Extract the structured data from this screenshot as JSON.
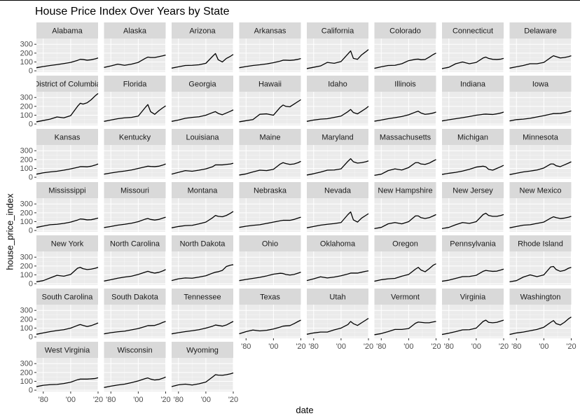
{
  "chart_data": {
    "type": "line",
    "title": "House Price Index Over Years by State",
    "xlabel": "date",
    "ylabel": "house_price_index",
    "xlim": [
      1975,
      2020
    ],
    "ylim": [
      -15,
      365
    ],
    "xticks": [
      {
        "value": 1980,
        "label": "'80"
      },
      {
        "value": 2000,
        "label": "'00"
      },
      {
        "value": 2020,
        "label": "'20"
      }
    ],
    "yticks": [
      0,
      100,
      200,
      300
    ],
    "x": [
      1975,
      1980,
      1985,
      1990,
      1995,
      2000,
      2005,
      2007,
      2009,
      2012,
      2015,
      2018,
      2020
    ],
    "series": [
      {
        "name": "Alabama",
        "values": [
          35,
          48,
          60,
          70,
          82,
          95,
          118,
          130,
          128,
          120,
          125,
          135,
          145
        ]
      },
      {
        "name": "Alaska",
        "values": [
          38,
          55,
          75,
          62,
          75,
          95,
          140,
          155,
          150,
          150,
          160,
          170,
          178
        ]
      },
      {
        "name": "Arizona",
        "values": [
          30,
          45,
          60,
          62,
          68,
          85,
          165,
          195,
          125,
          100,
          140,
          165,
          185
        ]
      },
      {
        "name": "Arkansas",
        "values": [
          35,
          48,
          60,
          68,
          78,
          92,
          110,
          120,
          120,
          118,
          122,
          130,
          138
        ]
      },
      {
        "name": "California",
        "values": [
          25,
          40,
          55,
          95,
          85,
          105,
          190,
          225,
          140,
          130,
          180,
          215,
          240
        ]
      },
      {
        "name": "Colorado",
        "values": [
          28,
          45,
          60,
          62,
          80,
          115,
          130,
          132,
          125,
          128,
          155,
          185,
          200
        ]
      },
      {
        "name": "Connecticut",
        "values": [
          25,
          40,
          80,
          100,
          80,
          95,
          145,
          155,
          140,
          130,
          128,
          132,
          140
        ]
      },
      {
        "name": "Delaware",
        "values": [
          30,
          45,
          60,
          80,
          80,
          95,
          150,
          170,
          160,
          145,
          150,
          160,
          170
        ]
      },
      {
        "name": "District of Columbia",
        "values": [
          25,
          40,
          55,
          80,
          70,
          95,
          200,
          235,
          225,
          240,
          275,
          320,
          345
        ]
      },
      {
        "name": "Florida",
        "values": [
          30,
          45,
          60,
          70,
          75,
          90,
          185,
          220,
          140,
          110,
          150,
          185,
          205
        ]
      },
      {
        "name": "Georgia",
        "values": [
          30,
          45,
          65,
          75,
          82,
          100,
          130,
          140,
          120,
          105,
          125,
          145,
          160
        ]
      },
      {
        "name": "Hawaii",
        "values": [
          25,
          38,
          50,
          110,
          115,
          100,
          190,
          215,
          200,
          195,
          225,
          255,
          275
        ]
      },
      {
        "name": "Idaho",
        "values": [
          30,
          45,
          55,
          60,
          75,
          90,
          140,
          165,
          130,
          115,
          145,
          175,
          200
        ]
      },
      {
        "name": "Illinois",
        "values": [
          32,
          45,
          60,
          72,
          85,
          105,
          135,
          145,
          125,
          110,
          115,
          125,
          135
        ]
      },
      {
        "name": "Indiana",
        "values": [
          35,
          48,
          60,
          72,
          85,
          100,
          110,
          112,
          110,
          108,
          115,
          125,
          135
        ]
      },
      {
        "name": "Iowa",
        "values": [
          35,
          50,
          55,
          65,
          80,
          95,
          112,
          118,
          118,
          120,
          128,
          138,
          148
        ]
      },
      {
        "name": "Kansas",
        "values": [
          35,
          50,
          60,
          68,
          80,
          95,
          112,
          120,
          120,
          118,
          125,
          138,
          150
        ]
      },
      {
        "name": "Kentucky",
        "values": [
          35,
          48,
          60,
          70,
          82,
          100,
          118,
          125,
          122,
          120,
          125,
          138,
          150
        ]
      },
      {
        "name": "Louisiana",
        "values": [
          35,
          55,
          75,
          68,
          80,
          95,
          120,
          140,
          140,
          140,
          145,
          150,
          158
        ]
      },
      {
        "name": "Maine",
        "values": [
          25,
          38,
          60,
          80,
          75,
          90,
          150,
          165,
          155,
          145,
          150,
          165,
          180
        ]
      },
      {
        "name": "Maryland",
        "values": [
          25,
          40,
          58,
          80,
          82,
          95,
          180,
          210,
          175,
          160,
          165,
          175,
          185
        ]
      },
      {
        "name": "Massachusetts",
        "values": [
          22,
          35,
          75,
          95,
          82,
          110,
          165,
          165,
          150,
          145,
          160,
          185,
          200
        ]
      },
      {
        "name": "Michigan",
        "values": [
          32,
          45,
          55,
          70,
          90,
          115,
          125,
          118,
          90,
          80,
          100,
          120,
          135
        ]
      },
      {
        "name": "Minnesota",
        "values": [
          30,
          45,
          60,
          70,
          82,
          105,
          150,
          150,
          130,
          120,
          140,
          160,
          175
        ]
      },
      {
        "name": "Mississippi",
        "values": [
          35,
          50,
          65,
          70,
          80,
          95,
          118,
          130,
          128,
          120,
          122,
          132,
          140
        ]
      },
      {
        "name": "Missouri",
        "values": [
          33,
          45,
          60,
          70,
          82,
          100,
          128,
          135,
          125,
          118,
          125,
          140,
          150
        ]
      },
      {
        "name": "Montana",
        "values": [
          30,
          45,
          55,
          58,
          75,
          95,
          145,
          170,
          160,
          155,
          170,
          195,
          215
        ]
      },
      {
        "name": "Nebraska",
        "values": [
          35,
          48,
          58,
          65,
          80,
          95,
          110,
          115,
          115,
          115,
          125,
          140,
          150
        ]
      },
      {
        "name": "Nevada",
        "values": [
          30,
          45,
          60,
          70,
          78,
          90,
          180,
          210,
          120,
          95,
          140,
          170,
          190
        ]
      },
      {
        "name": "New Hampshire",
        "values": [
          22,
          35,
          75,
          90,
          75,
          100,
          165,
          165,
          145,
          135,
          145,
          165,
          180
        ]
      },
      {
        "name": "New Jersey",
        "values": [
          22,
          35,
          65,
          90,
          80,
          100,
          180,
          195,
          170,
          160,
          160,
          170,
          180
        ]
      },
      {
        "name": "New Mexico",
        "values": [
          30,
          45,
          60,
          65,
          80,
          95,
          140,
          155,
          145,
          135,
          140,
          150,
          160
        ]
      },
      {
        "name": "New York",
        "values": [
          22,
          35,
          65,
          95,
          85,
          105,
          175,
          185,
          170,
          160,
          165,
          175,
          185
        ]
      },
      {
        "name": "North Carolina",
        "values": [
          30,
          45,
          62,
          75,
          85,
          105,
          130,
          140,
          130,
          120,
          128,
          145,
          160
        ]
      },
      {
        "name": "North Dakota",
        "values": [
          35,
          55,
          65,
          62,
          75,
          90,
          120,
          130,
          135,
          150,
          195,
          210,
          215
        ]
      },
      {
        "name": "Ohio",
        "values": [
          35,
          48,
          60,
          72,
          88,
          108,
          118,
          115,
          105,
          98,
          105,
          120,
          130
        ]
      },
      {
        "name": "Oklahoma",
        "values": [
          35,
          55,
          78,
          65,
          75,
          90,
          110,
          120,
          120,
          120,
          130,
          140,
          145
        ]
      },
      {
        "name": "Oregon",
        "values": [
          28,
          45,
          55,
          60,
          85,
          105,
          165,
          185,
          155,
          135,
          170,
          210,
          225
        ]
      },
      {
        "name": "Pennsylvania",
        "values": [
          28,
          40,
          60,
          80,
          82,
          95,
          140,
          150,
          145,
          140,
          142,
          155,
          165
        ]
      },
      {
        "name": "Rhode Island",
        "values": [
          22,
          35,
          75,
          100,
          80,
          100,
          190,
          195,
          160,
          140,
          150,
          175,
          185
        ]
      },
      {
        "name": "South Carolina",
        "values": [
          30,
          45,
          60,
          72,
          82,
          100,
          130,
          140,
          130,
          118,
          128,
          145,
          158
        ]
      },
      {
        "name": "South Dakota",
        "values": [
          35,
          48,
          58,
          65,
          80,
          95,
          118,
          128,
          128,
          130,
          145,
          165,
          175
        ]
      },
      {
        "name": "Tennessee",
        "values": [
          35,
          48,
          60,
          70,
          82,
          100,
          122,
          135,
          130,
          122,
          135,
          160,
          175
        ]
      },
      {
        "name": "Texas",
        "values": [
          35,
          60,
          78,
          68,
          75,
          90,
          112,
          122,
          125,
          128,
          150,
          175,
          190
        ]
      },
      {
        "name": "Utah",
        "values": [
          30,
          45,
          55,
          55,
          80,
          100,
          140,
          175,
          150,
          130,
          160,
          190,
          210
        ]
      },
      {
        "name": "Vermont",
        "values": [
          25,
          38,
          60,
          85,
          85,
          95,
          155,
          168,
          165,
          160,
          160,
          170,
          175
        ]
      },
      {
        "name": "Virginia",
        "values": [
          28,
          42,
          60,
          80,
          82,
          100,
          175,
          190,
          165,
          160,
          165,
          180,
          190
        ]
      },
      {
        "name": "Washington",
        "values": [
          28,
          45,
          55,
          70,
          85,
          110,
          165,
          185,
          150,
          135,
          165,
          205,
          225
        ]
      },
      {
        "name": "West Virginia",
        "values": [
          40,
          55,
          62,
          65,
          75,
          90,
          118,
          125,
          125,
          125,
          128,
          132,
          140
        ]
      },
      {
        "name": "Wisconsin",
        "values": [
          30,
          45,
          58,
          68,
          85,
          105,
          130,
          138,
          125,
          115,
          120,
          135,
          148
        ]
      },
      {
        "name": "Wyoming",
        "values": [
          40,
          60,
          68,
          58,
          72,
          92,
          150,
          175,
          170,
          168,
          175,
          185,
          195
        ]
      }
    ],
    "grid": true,
    "legend": "none",
    "facet_layout": "wrap",
    "colors": {
      "panel_bg": "#ebebeb",
      "strip_bg": "#d9d9d9",
      "grid_major": "#ffffff",
      "line": "#000000"
    }
  }
}
